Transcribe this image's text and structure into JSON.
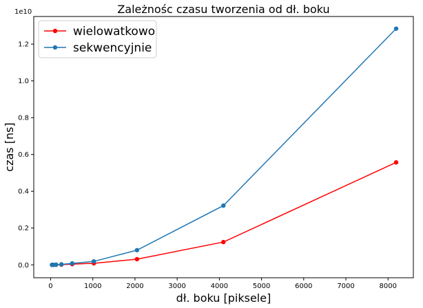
{
  "chart_data": {
    "type": "line",
    "title": "Zależnośc czasu tworzenia od dł. boku",
    "xlabel": "dł. boku [piksele]",
    "ylabel": "czas [ns]",
    "y_offset_label": "1e10",
    "xlim": [
      -400,
      8600
    ],
    "ylim": [
      -0.07,
      1.35
    ],
    "x_ticks": [
      0,
      1000,
      2000,
      3000,
      4000,
      5000,
      6000,
      7000,
      8000
    ],
    "y_ticks": [
      0.0,
      0.2,
      0.4,
      0.6,
      0.8,
      1.0,
      1.2
    ],
    "y_tick_labels": [
      "0.0",
      "0.2",
      "0.4",
      "0.6",
      "0.8",
      "1.0",
      "1.2"
    ],
    "grid": false,
    "legend_position": "top-left",
    "x": [
      32,
      64,
      128,
      256,
      512,
      1024,
      2048,
      4096,
      8192
    ],
    "series": [
      {
        "name": "wielowatkowo",
        "color": "#ff0000",
        "values": [
          0.0001,
          0.0002,
          0.0005,
          0.0015,
          0.004,
          0.0085,
          0.031,
          0.124,
          0.557
        ]
      },
      {
        "name": "sekwencyjnie",
        "color": "#1f77b4",
        "values": [
          0.0001,
          0.0003,
          0.001,
          0.003,
          0.008,
          0.019,
          0.08,
          0.322,
          1.284
        ]
      }
    ]
  }
}
